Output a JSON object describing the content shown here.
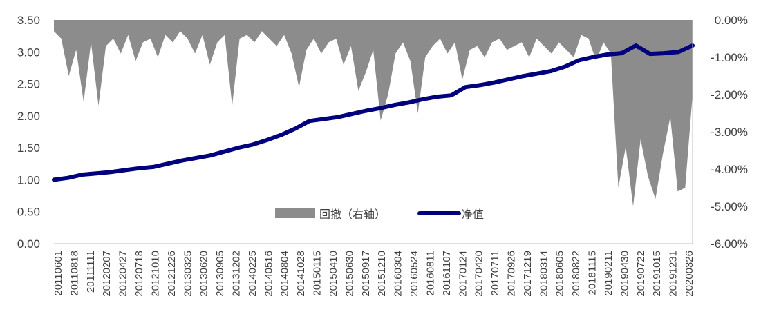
{
  "chart_data": {
    "type": "line+area",
    "title": "",
    "xlabel": "",
    "ylabel": "",
    "y_left": {
      "range": [
        0,
        3.5
      ],
      "ticks": [
        "3.50",
        "3.00",
        "2.50",
        "2.00",
        "1.50",
        "1.00",
        "0.50",
        "0.00"
      ]
    },
    "y_right": {
      "range": [
        -6,
        0
      ],
      "ticks": [
        "0.00%",
        "-1.00%",
        "-2.00%",
        "-3.00%",
        "-4.00%",
        "-5.00%",
        "-6.00%"
      ]
    },
    "x_tick_labels": [
      "20110601",
      "20110818",
      "20111111",
      "20120207",
      "20120427",
      "20120718",
      "20121010",
      "20121226",
      "20130325",
      "20130620",
      "20130905",
      "20131202",
      "20140225",
      "20140516",
      "20140804",
      "20141028",
      "20150115",
      "20150410",
      "20150630",
      "20150917",
      "20151210",
      "20160304",
      "20160524",
      "20160811",
      "20161107",
      "20170124",
      "20170420",
      "20170711",
      "20170926",
      "20171219",
      "20180314",
      "20180605",
      "20180822",
      "20181115",
      "20190211",
      "20190430",
      "20190722",
      "20191015",
      "20191231",
      "20200326"
    ],
    "legend": {
      "position": "bottom-center",
      "entries": [
        "回撤（右轴）",
        "净值"
      ]
    },
    "series": [
      {
        "name": "净值",
        "axis": "left",
        "color": "#00007f",
        "values": [
          1.0,
          1.03,
          1.08,
          1.1,
          1.12,
          1.15,
          1.18,
          1.2,
          1.25,
          1.3,
          1.34,
          1.38,
          1.44,
          1.5,
          1.55,
          1.62,
          1.7,
          1.8,
          1.92,
          1.95,
          1.98,
          2.03,
          2.08,
          2.12,
          2.17,
          2.21,
          2.26,
          2.3,
          2.32,
          2.45,
          2.48,
          2.52,
          2.57,
          2.62,
          2.66,
          2.7,
          2.77,
          2.87,
          2.92,
          2.96,
          2.98,
          3.1,
          2.97,
          2.98,
          3.0,
          3.1
        ]
      },
      {
        "name": "回撤（右轴）",
        "axis": "right",
        "color": "#8c8c8c",
        "values": [
          -0.3,
          -0.5,
          -1.5,
          -0.8,
          -2.2,
          -0.6,
          -2.3,
          -0.7,
          -0.5,
          -0.9,
          -0.4,
          -1.1,
          -0.6,
          -0.5,
          -1.0,
          -0.4,
          -0.6,
          -0.3,
          -0.5,
          -0.9,
          -0.4,
          -1.2,
          -0.6,
          -0.4,
          -2.3,
          -0.5,
          -0.4,
          -0.6,
          -0.3,
          -0.5,
          -0.7,
          -0.4,
          -0.9,
          -1.8,
          -0.8,
          -0.5,
          -0.9,
          -0.6,
          -0.5,
          -1.2,
          -0.7,
          -1.9,
          -1.4,
          -0.8,
          -2.7,
          -2.0,
          -0.9,
          -0.6,
          -1.1,
          -2.5,
          -1.0,
          -0.7,
          -0.5,
          -0.9,
          -0.6,
          -1.6,
          -0.8,
          -0.7,
          -1.0,
          -0.6,
          -0.5,
          -0.8,
          -0.7,
          -0.6,
          -1.0,
          -0.5,
          -0.7,
          -0.9,
          -0.6,
          -0.8,
          -1.0,
          -0.4,
          -0.5,
          -1.1,
          -0.6,
          -0.9,
          -4.5,
          -3.4,
          -5.0,
          -3.2,
          -4.2,
          -4.8,
          -3.6,
          -2.6,
          -4.6,
          -4.5,
          -2.0
        ]
      }
    ]
  }
}
